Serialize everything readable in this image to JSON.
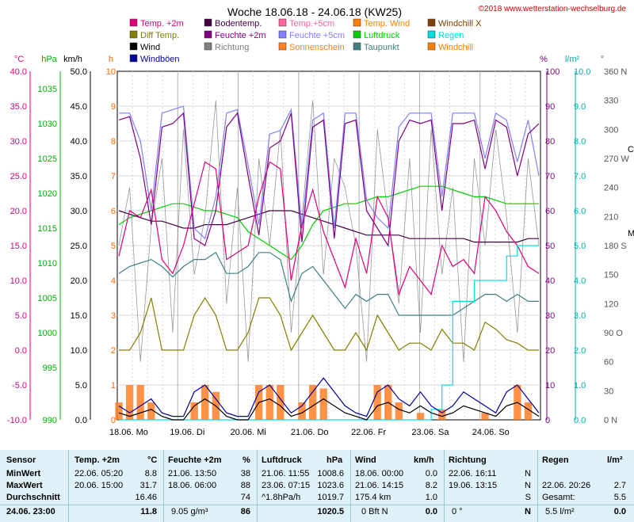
{
  "chart_data": {
    "type": "line",
    "title": "Woche 18.06.18 - 24.06.18 (KW25)",
    "copyright": "©2018 www.wetterstation-wechselburg.de",
    "x_labels": [
      "18.06.  Mo",
      "19.06.  Di",
      "20.06.  Mi",
      "21.06.  Do",
      "22.06.  Fr",
      "23.06.  Sa",
      "24.06.  So"
    ],
    "axes": {
      "temp": {
        "unit": "°C",
        "ticks": [
          "40.0",
          "35.0",
          "30.0",
          "25.0",
          "20.0",
          "15.0",
          "10.0",
          "5.0",
          "0.0",
          "-5.0",
          "-10.0"
        ],
        "range": [
          -10,
          40
        ],
        "color": "#e0007a"
      },
      "pressure": {
        "unit": "hPa",
        "ticks": [
          "1035",
          "1030",
          "1025",
          "1020",
          "1015",
          "1010",
          "1005",
          "1000",
          "995",
          "990"
        ],
        "range": [
          990,
          1040
        ],
        "color": "#00b000"
      },
      "wind": {
        "unit": "km/h",
        "ticks": [
          "50.0",
          "45.0",
          "40.0",
          "35.0",
          "30.0",
          "25.0",
          "20.0",
          "15.0",
          "10.0",
          "5.0",
          "0.0"
        ],
        "range": [
          0,
          50
        ],
        "color": "#000000"
      },
      "sun": {
        "unit": "h",
        "ticks": [
          "10",
          "9",
          "8",
          "7",
          "6",
          "5",
          "4",
          "3",
          "2",
          "1",
          "0"
        ],
        "range": [
          0,
          10
        ],
        "color": "#ff6600"
      },
      "humidity": {
        "unit": "%",
        "ticks": [
          "100",
          "90",
          "80",
          "70",
          "60",
          "50",
          "40",
          "30",
          "20",
          "10",
          "0"
        ],
        "range": [
          0,
          100
        ],
        "color": "#800080"
      },
      "rain": {
        "unit": "l/m²",
        "ticks": [
          "10.0",
          "9.0",
          "8.0",
          "7.0",
          "6.0",
          "5.0",
          "4.0",
          "3.0",
          "2.0",
          "1.0",
          "0.0"
        ],
        "range": [
          0,
          10
        ],
        "color": "#00b0b0"
      },
      "direction": {
        "unit": "°",
        "ticks": [
          "360 N",
          "330",
          "300",
          "270 W",
          "240",
          "210",
          "180 S",
          "150",
          "120",
          "90 O",
          "60",
          "30",
          "0 N"
        ],
        "range": [
          0,
          360
        ],
        "color": "#555555"
      }
    },
    "legend": [
      {
        "name": "Temp. +2m",
        "color": "#e0007a"
      },
      {
        "name": "Diff Temp.",
        "color": "#808000"
      },
      {
        "name": "Wind",
        "color": "#000000"
      },
      {
        "name": "Windböen",
        "color": "#0000a0"
      },
      {
        "name": "Bodentemp.",
        "color": "#400040"
      },
      {
        "name": "Feuchte +2m",
        "color": "#800080"
      },
      {
        "name": "Richtung",
        "color": "#808080"
      },
      {
        "name": "Temp.+5cm",
        "color": "#ff6699"
      },
      {
        "name": "Feuchte +5cm",
        "color": "#8080ff"
      },
      {
        "name": "Sonnenschein",
        "color": "#ff7f27"
      },
      {
        "name": "Temp. Wind",
        "color": "#ff8000"
      },
      {
        "name": "Luftdruck",
        "color": "#00d000"
      },
      {
        "name": "Taupunkt",
        "color": "#408080"
      },
      {
        "name": "Windchill X",
        "color": "#804000"
      },
      {
        "name": "Regen",
        "color": "#00e0e0"
      },
      {
        "name": "Windchill",
        "color": "#ff8000"
      }
    ],
    "series": [
      {
        "name": "Temp. +2m",
        "axis": "temp",
        "values": [
          13.5,
          20,
          19,
          23,
          13,
          11,
          15,
          21,
          27,
          26,
          13,
          14,
          15,
          22,
          27,
          26,
          10,
          18,
          23,
          17,
          13,
          9,
          16,
          11,
          22,
          19,
          8,
          12,
          10,
          8,
          15,
          12,
          13,
          11,
          22,
          20,
          17,
          15,
          12,
          11
        ]
      },
      {
        "name": "Bodentemp.",
        "axis": "temp",
        "values": [
          20,
          19.5,
          19,
          18.5,
          18.5,
          18,
          17.5,
          17.5,
          18,
          18,
          18,
          18.5,
          19,
          19.5,
          20,
          20,
          20,
          19.5,
          19,
          18.5,
          18,
          17.5,
          17,
          16.5,
          16.5,
          16.5,
          16.5,
          16,
          16,
          16,
          16,
          16,
          16,
          15.5,
          15.5,
          15.5,
          15.5,
          15.5,
          16,
          16
        ]
      },
      {
        "name": "Feuchte +2m",
        "axis": "humidity",
        "values": [
          86,
          87,
          75,
          56,
          84,
          85,
          88,
          52,
          50,
          60,
          84,
          88,
          70,
          53,
          78,
          80,
          88,
          51,
          84,
          86,
          52,
          85,
          86,
          60,
          55,
          50,
          80,
          86,
          85,
          86,
          60,
          85,
          85,
          86,
          72,
          86,
          84,
          70,
          82,
          85
        ]
      },
      {
        "name": "Feuchte +5cm",
        "axis": "humidity",
        "values": [
          88,
          88,
          80,
          60,
          88,
          89,
          90,
          55,
          52,
          64,
          88,
          89,
          73,
          56,
          82,
          83,
          89,
          55,
          86,
          88,
          55,
          88,
          88,
          63,
          58,
          55,
          84,
          88,
          88,
          88,
          64,
          88,
          88,
          88,
          75,
          88,
          86,
          74,
          86,
          70
        ]
      },
      {
        "name": "Luftdruck",
        "axis": "pressure",
        "values": [
          1018,
          1019,
          1019.5,
          1020,
          1020.5,
          1021,
          1021,
          1020.5,
          1020,
          1020,
          1019.5,
          1019,
          1017,
          1016,
          1015,
          1014,
          1013,
          1015,
          1018,
          1020,
          1020.5,
          1021,
          1021,
          1021.5,
          1022,
          1022,
          1022.5,
          1023,
          1023.5,
          1023.5,
          1023.5,
          1023,
          1022.5,
          1022,
          1022,
          1021.5,
          1021,
          1021,
          1021,
          1021
        ]
      },
      {
        "name": "Taupunkt",
        "axis": "temp",
        "values": [
          11,
          12,
          12.5,
          13,
          12,
          10.5,
          12,
          13,
          13,
          14,
          11,
          11,
          12,
          14,
          14,
          13,
          7,
          11,
          12,
          10,
          8,
          6,
          8,
          7,
          8,
          8,
          5,
          5,
          5,
          5,
          5,
          5,
          6,
          7,
          8,
          8,
          7,
          8,
          7,
          7
        ]
      },
      {
        "name": "Diff Temp.",
        "axis": "sun",
        "values": [
          2,
          2,
          2.5,
          3.5,
          2,
          2,
          2,
          3,
          3.5,
          3,
          2,
          2,
          2.5,
          3.5,
          3.5,
          3,
          2,
          2.5,
          3,
          2.5,
          2,
          2,
          2.5,
          2,
          3,
          2.5,
          2,
          2.2,
          2.2,
          2,
          2.6,
          2.2,
          2.2,
          2,
          2.8,
          2.6,
          2.3,
          2.2,
          2,
          2
        ]
      },
      {
        "name": "Wind",
        "axis": "wind",
        "values": [
          1,
          0.5,
          1,
          1.5,
          0.5,
          0,
          0,
          2,
          3,
          2,
          0.5,
          0,
          0,
          2.5,
          3,
          2,
          0.5,
          1,
          2,
          3,
          2,
          1,
          0.5,
          0,
          2,
          2.5,
          1.5,
          1,
          2,
          1,
          0.5,
          1,
          2,
          1.5,
          1,
          0.5,
          2,
          2.5,
          1.5,
          0.5
        ]
      },
      {
        "name": "Windböen",
        "axis": "wind",
        "values": [
          2,
          1,
          2,
          3,
          1,
          0.5,
          0.5,
          4,
          5,
          3,
          1,
          0.5,
          0.5,
          4,
          5,
          3,
          1,
          2,
          4,
          6,
          4,
          2,
          1,
          0.5,
          4,
          5,
          3,
          2,
          4,
          2,
          1,
          2,
          4,
          3,
          2,
          1,
          4,
          5,
          3,
          1
        ]
      },
      {
        "name": "Regen",
        "axis": "rain",
        "values": [
          0,
          0,
          0,
          0,
          0,
          0,
          0,
          0,
          0,
          0,
          0,
          0,
          0,
          0,
          0,
          0,
          0,
          0,
          0,
          0,
          0,
          0,
          0,
          0,
          0,
          0,
          0,
          0,
          0,
          0.3,
          1.0,
          3.4,
          3.4,
          4.0,
          4.0,
          4.0,
          4.7,
          5.0,
          5.0,
          5.0
        ]
      },
      {
        "name": "Sonnenschein",
        "axis": "sun",
        "values": [
          0.5,
          1,
          1,
          0.5,
          0,
          0,
          0,
          0.5,
          1,
          0.8,
          0,
          0,
          0,
          1,
          1,
          1,
          0,
          0.5,
          1,
          0.9,
          0,
          0,
          0,
          0,
          1,
          1,
          0.5,
          0,
          0.2,
          0,
          0.3,
          0,
          0,
          0,
          0.2,
          0,
          0,
          1,
          0.5,
          0
        ]
      },
      {
        "name": "Richtung",
        "axis": "direction",
        "values": [
          180,
          240,
          60,
          200,
          270,
          90,
          300,
          150,
          210,
          330,
          120,
          240,
          60,
          270,
          180,
          300,
          90,
          210,
          330,
          150,
          270,
          240,
          180,
          60,
          300,
          210,
          120,
          270,
          90,
          300,
          150,
          240,
          60,
          270,
          180,
          300,
          210,
          90,
          270,
          180
        ]
      }
    ]
  },
  "stats": {
    "headers": [
      "Sensor",
      "Temp. +2m",
      "°C",
      "Feuchte +2m",
      "%",
      "Luftdruck",
      "hPa",
      "Wind",
      "km/h",
      "Richtung",
      "Regen",
      "l/m²"
    ],
    "row_labels": [
      "MinWert",
      "MaxWert",
      "Durchschnitt"
    ],
    "temp": {
      "min_time": "22.06.  05:20",
      "min": "8.8",
      "max_time": "20.06.  15:00",
      "max": "31.7",
      "avg": "16.46",
      "current": "11.8"
    },
    "humidity": {
      "min_time": "21.06.  13:50",
      "min": "38",
      "max_time": "18.06.  06:00",
      "max": "88",
      "avg": "74",
      "extra": "9.05 g/m³",
      "current": "86"
    },
    "pressure": {
      "min_time": "21.06.  11:55",
      "min": "1008.6",
      "max_time": "23.06.  07:15",
      "max": "1023.6",
      "trend": "^1.8hPa/h",
      "avg": "1019.7",
      "current": "1020.5"
    },
    "wind": {
      "min_time": "18.06.  00:00",
      "min": "0.0",
      "max_time": "21.06.  14:15",
      "max": "8.2",
      "distance": "175.4 km",
      "avg": "1.0",
      "current_bft": "0 Bft N",
      "current": "0.0"
    },
    "direction": {
      "min_time": "22.06.  16:11",
      "min": "N",
      "max_time": "19.06.  13:15",
      "max": "N",
      "avg": "S",
      "current": "0 °",
      "current_dir": "N"
    },
    "rain": {
      "max_time": "22.06.  20:26",
      "max": "2.7",
      "total_label": "Gesamt:",
      "total": "5.5",
      "current": "5.5 l/m²",
      "current_val": "0.0"
    },
    "timestamp": "24.06.  23:00"
  }
}
